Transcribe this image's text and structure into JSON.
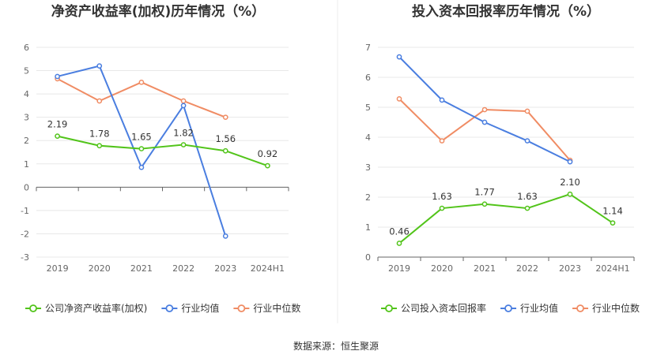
{
  "source_label": "数据来源：恒生聚源",
  "chart_data": [
    {
      "type": "line",
      "title": "净资产收益率(加权)历年情况（%）",
      "categories": [
        "2019",
        "2020",
        "2021",
        "2022",
        "2023",
        "2024H1"
      ],
      "y_ticks": [
        "6",
        "5",
        "4",
        "3",
        "2",
        "1",
        "0",
        "-1",
        "-2",
        "-3"
      ],
      "ylim": [
        -3,
        6
      ],
      "series": [
        {
          "name": "公司净资产收益率(加权)",
          "color": "#52c41a",
          "values": [
            2.19,
            1.78,
            1.65,
            1.82,
            1.56,
            0.92
          ],
          "labels": [
            "2.19",
            "1.78",
            "1.65",
            "1.82",
            "1.56",
            "0.92"
          ]
        },
        {
          "name": "行业均值",
          "color": "#4a7ee0",
          "values": [
            4.75,
            5.2,
            0.85,
            3.5,
            -2.1,
            null
          ]
        },
        {
          "name": "行业中位数",
          "color": "#f08c64",
          "values": [
            4.65,
            3.7,
            4.5,
            3.7,
            3.0,
            null
          ]
        }
      ]
    },
    {
      "type": "line",
      "title": "投入资本回报率历年情况（%）",
      "categories": [
        "2019",
        "2020",
        "2021",
        "2022",
        "2023",
        "2024H1"
      ],
      "y_ticks": [
        "7",
        "6",
        "5",
        "4",
        "3",
        "2",
        "1",
        "0"
      ],
      "ylim": [
        0,
        7
      ],
      "series": [
        {
          "name": "公司投入资本回报率",
          "color": "#52c41a",
          "values": [
            0.46,
            1.63,
            1.77,
            1.63,
            2.1,
            1.14
          ],
          "labels": [
            "0.46",
            "1.63",
            "1.77",
            "1.63",
            "2.10",
            "1.14"
          ]
        },
        {
          "name": "行业均值",
          "color": "#4a7ee0",
          "values": [
            6.68,
            5.24,
            4.5,
            3.88,
            3.18,
            null
          ]
        },
        {
          "name": "行业中位数",
          "color": "#f08c64",
          "values": [
            5.28,
            3.88,
            4.92,
            4.87,
            3.23,
            null
          ]
        }
      ]
    }
  ]
}
